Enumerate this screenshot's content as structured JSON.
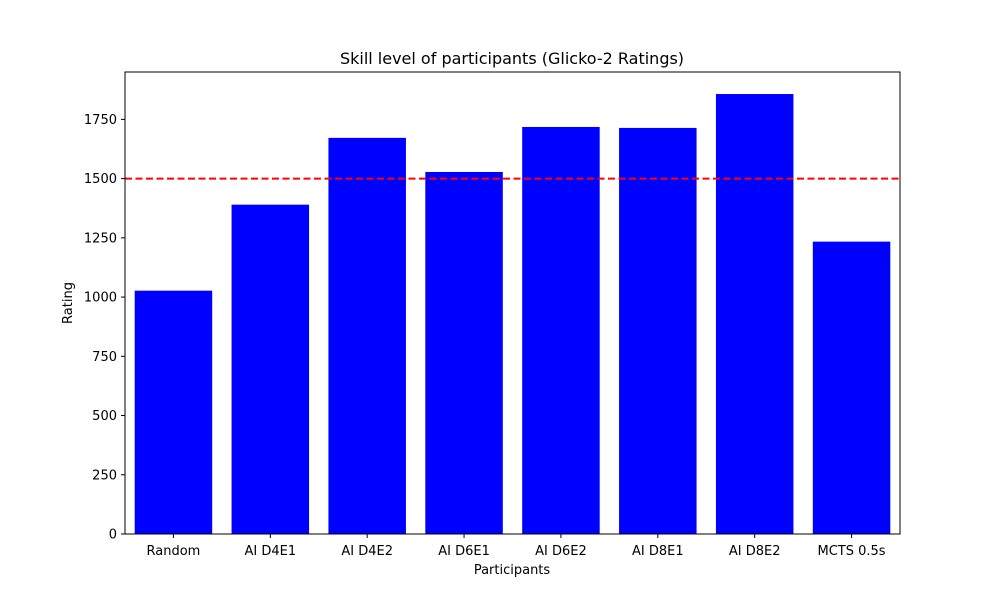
{
  "chart_data": {
    "type": "bar",
    "title": "Skill level of participants (Glicko-2 Ratings)",
    "xlabel": "Participants",
    "ylabel": "Rating",
    "categories": [
      "Random",
      "AI D4E1",
      "AI D4E2",
      "AI D6E1",
      "AI D6E2",
      "AI D8E1",
      "AI D8E2",
      "MCTS 0.5s"
    ],
    "values": [
      1027,
      1390,
      1672,
      1528,
      1718,
      1714,
      1857,
      1234
    ],
    "ylim": [
      0,
      1950
    ],
    "yticks": [
      0,
      250,
      500,
      750,
      1000,
      1250,
      1500,
      1750
    ],
    "reference_line": {
      "y": 1500,
      "style": "dashed"
    },
    "bar_color": "#0000ff",
    "reference_color": "#ff0000",
    "grid": false
  }
}
